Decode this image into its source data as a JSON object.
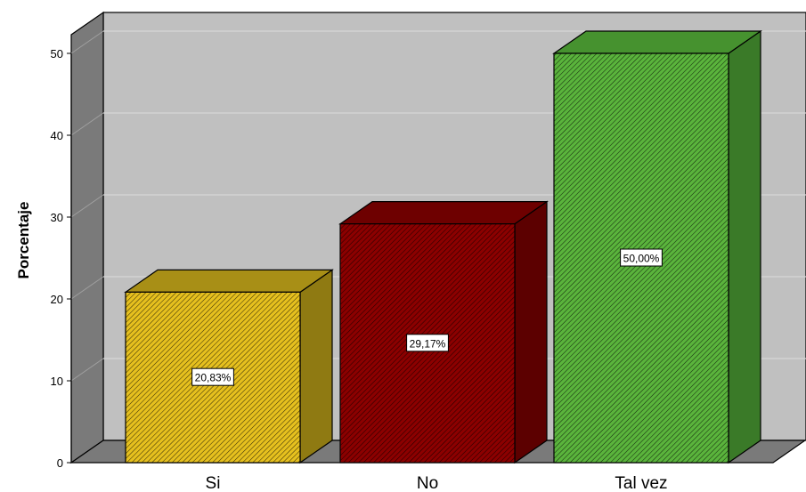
{
  "chart_data": {
    "type": "bar",
    "style": "3d",
    "categories": [
      "Si",
      "No",
      "Tal vez"
    ],
    "values": [
      20.83,
      29.17,
      50.0
    ],
    "data_labels": [
      "20,83%",
      "29,17%",
      "50,00%"
    ],
    "bar_colors": [
      "#e6c01e",
      "#8c0000",
      "#5ab43c"
    ],
    "side_colors": [
      "#8f7a12",
      "#5c0000",
      "#3a7a28"
    ],
    "top_colors": [
      "#a88f16",
      "#6e0000",
      "#46922f"
    ],
    "xlabel": "",
    "ylabel": "Porcentaje",
    "ylim": [
      0,
      50
    ],
    "yticks": [
      0,
      10,
      20,
      30,
      40,
      50
    ],
    "grid": true,
    "background": "#c0c0c0",
    "wall_color": "#7a7a7a"
  }
}
